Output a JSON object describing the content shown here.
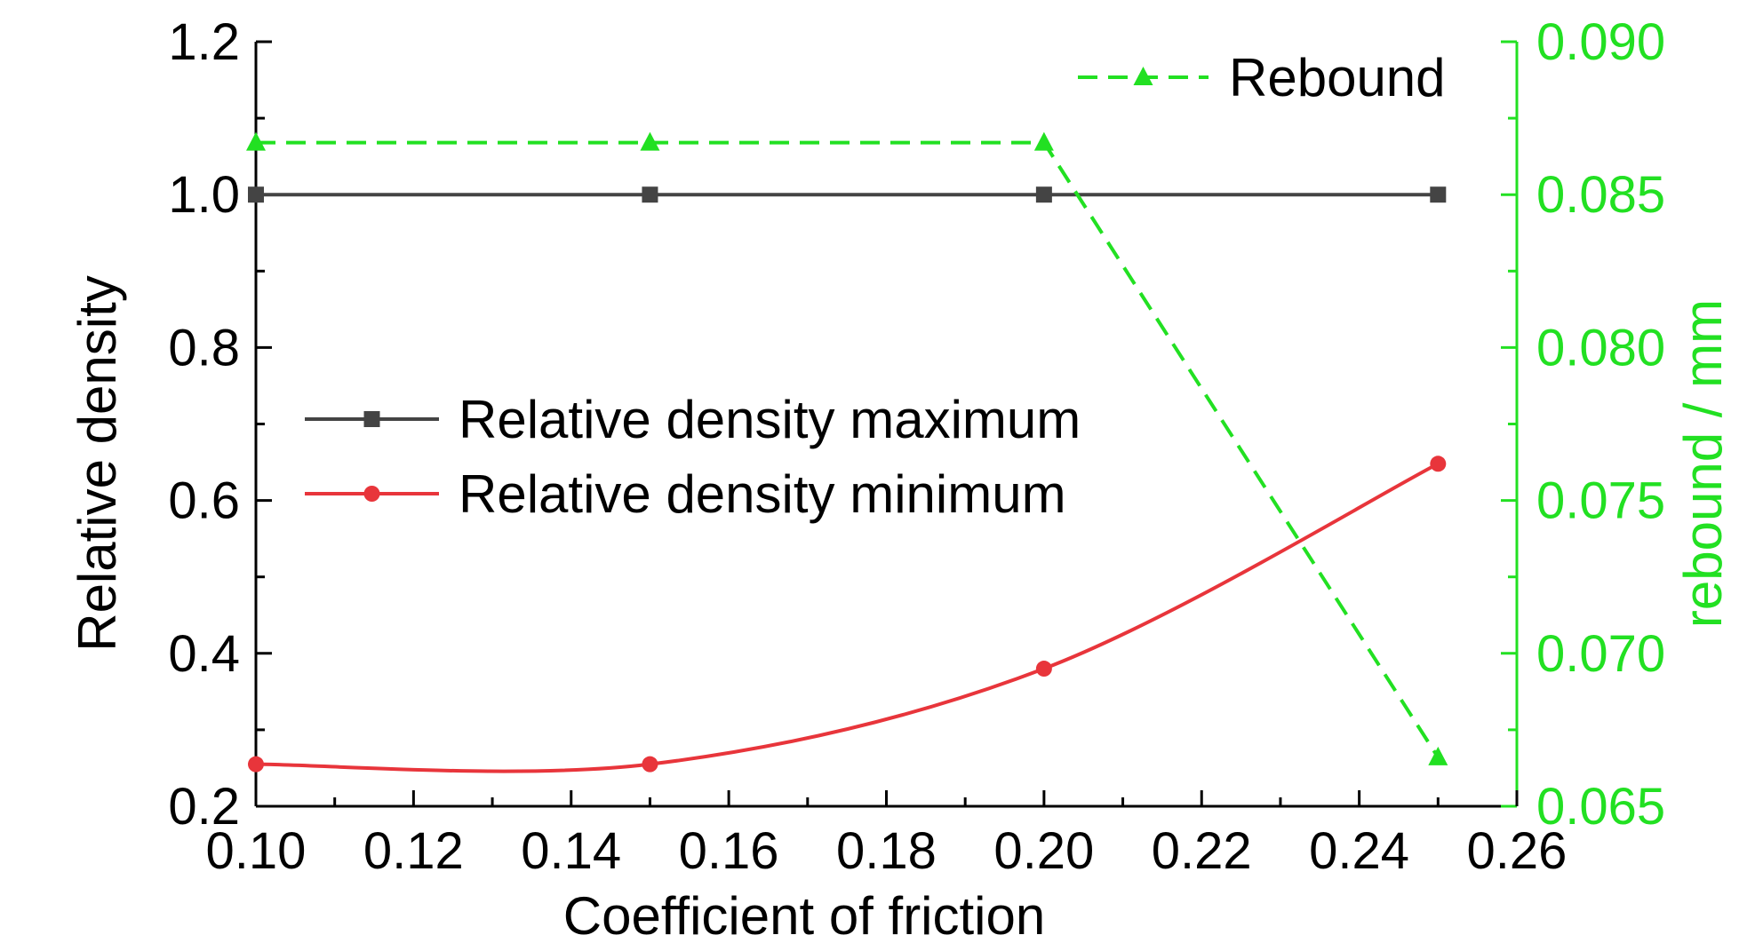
{
  "chart_data": {
    "type": "line",
    "xlabel": "Coefficient of friction",
    "ylabel": "Relative density",
    "y2label": "rebound / mm",
    "xlim": [
      0.1,
      0.26
    ],
    "ylim": [
      0.2,
      1.2
    ],
    "y2lim": [
      0.065,
      0.09
    ],
    "xticks": [
      "0.10",
      "0.12",
      "0.14",
      "0.16",
      "0.18",
      "0.20",
      "0.22",
      "0.24",
      "0.26"
    ],
    "yticks": [
      "0.2",
      "0.4",
      "0.6",
      "0.8",
      "1.0",
      "1.2"
    ],
    "y2ticks": [
      "0.065",
      "0.070",
      "0.075",
      "0.080",
      "0.085",
      "0.090"
    ],
    "grid": false,
    "series": [
      {
        "name": "Relative density maximum",
        "axis": "left",
        "color": "#444444",
        "marker": "square",
        "line_style": "solid",
        "x": [
          0.1,
          0.15,
          0.2,
          0.25
        ],
        "values": [
          1.0,
          1.0,
          1.0,
          1.0
        ]
      },
      {
        "name": "Relative density minimum",
        "axis": "left",
        "color": "#e8353b",
        "marker": "circle",
        "line_style": "solid-smooth",
        "x": [
          0.1,
          0.15,
          0.2,
          0.25
        ],
        "values": [
          0.255,
          0.255,
          0.38,
          0.648
        ]
      },
      {
        "name": "Rebound",
        "axis": "right",
        "color": "#22e022",
        "marker": "triangle",
        "line_style": "dashed",
        "x": [
          0.1,
          0.15,
          0.2,
          0.25
        ],
        "values": [
          0.0867,
          0.0867,
          0.0867,
          0.0666
        ]
      }
    ],
    "legend": [
      {
        "placement": "top-right",
        "series": [
          "Rebound"
        ]
      },
      {
        "placement": "center-left",
        "series": [
          "Relative density maximum",
          "Relative density minimum"
        ]
      }
    ],
    "colors": {
      "left_axis": "#000000",
      "right_axis": "#22e022"
    }
  }
}
